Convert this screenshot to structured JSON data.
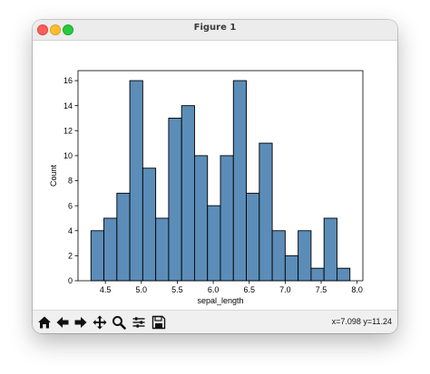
{
  "window": {
    "title": "Figure 1"
  },
  "toolbar": {
    "buttons": [
      {
        "name": "home-icon"
      },
      {
        "name": "back-arrow-icon"
      },
      {
        "name": "forward-arrow-icon"
      },
      {
        "name": "pan-move-icon"
      },
      {
        "name": "zoom-magnifier-icon"
      },
      {
        "name": "configure-subplots-icon"
      },
      {
        "name": "save-disk-icon"
      }
    ],
    "coordinates": "x=7.098 y=11.24"
  },
  "colors": {
    "bar_fill": "#5b8db8",
    "bar_edge": "#000000",
    "close": "#fe5f57",
    "minimize": "#febc2e",
    "maximize": "#28c840"
  },
  "chart_data": {
    "type": "bar",
    "title": "",
    "xlabel": "sepal_length",
    "ylabel": "Count",
    "xlim": [
      4.12,
      8.08
    ],
    "ylim": [
      0,
      16.8
    ],
    "bin_width": 0.18,
    "bins": [
      {
        "x0": 4.3,
        "x1": 4.48,
        "count": 4
      },
      {
        "x0": 4.48,
        "x1": 4.66,
        "count": 5
      },
      {
        "x0": 4.66,
        "x1": 4.84,
        "count": 7
      },
      {
        "x0": 4.84,
        "x1": 5.02,
        "count": 16
      },
      {
        "x0": 5.02,
        "x1": 5.2,
        "count": 9
      },
      {
        "x0": 5.2,
        "x1": 5.38,
        "count": 5
      },
      {
        "x0": 5.38,
        "x1": 5.56,
        "count": 13
      },
      {
        "x0": 5.56,
        "x1": 5.74,
        "count": 14
      },
      {
        "x0": 5.74,
        "x1": 5.92,
        "count": 10
      },
      {
        "x0": 5.92,
        "x1": 6.1,
        "count": 6
      },
      {
        "x0": 6.1,
        "x1": 6.28,
        "count": 10
      },
      {
        "x0": 6.28,
        "x1": 6.46,
        "count": 16
      },
      {
        "x0": 6.46,
        "x1": 6.64,
        "count": 7
      },
      {
        "x0": 6.64,
        "x1": 6.82,
        "count": 11
      },
      {
        "x0": 6.82,
        "x1": 7.0,
        "count": 4
      },
      {
        "x0": 7.0,
        "x1": 7.18,
        "count": 2
      },
      {
        "x0": 7.18,
        "x1": 7.36,
        "count": 4
      },
      {
        "x0": 7.36,
        "x1": 7.54,
        "count": 1
      },
      {
        "x0": 7.54,
        "x1": 7.72,
        "count": 5
      },
      {
        "x0": 7.72,
        "x1": 7.9,
        "count": 1
      }
    ],
    "xticks": [
      4.5,
      5.0,
      5.5,
      6.0,
      6.5,
      7.0,
      7.5,
      8.0
    ],
    "xtick_labels": [
      "4.5",
      "5.0",
      "5.5",
      "6.0",
      "6.5",
      "7.0",
      "7.5",
      "8.0"
    ],
    "yticks": [
      0,
      2,
      4,
      6,
      8,
      10,
      12,
      14,
      16
    ],
    "ytick_labels": [
      "0",
      "2",
      "4",
      "6",
      "8",
      "10",
      "12",
      "14",
      "16"
    ],
    "grid": false,
    "legend": "none"
  }
}
